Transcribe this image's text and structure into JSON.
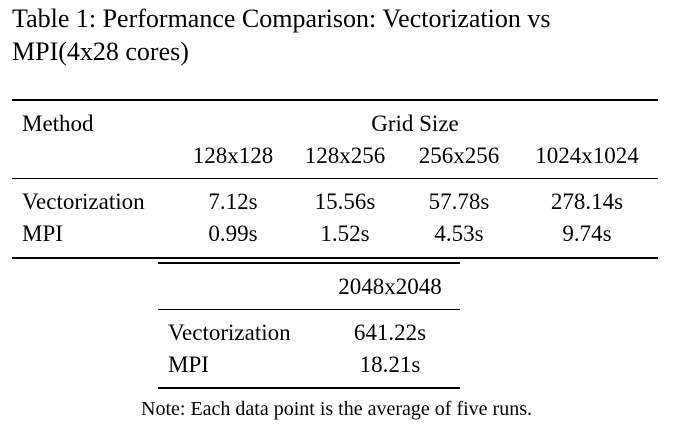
{
  "caption": {
    "line1": "Table 1: Performance Comparison: Vectorization vs",
    "line2": "MPI(4x28 cores)"
  },
  "table1": {
    "method_header": "Method",
    "group_header": "Grid Size",
    "columns": [
      "128x128",
      "128x256",
      "256x256",
      "1024x1024"
    ],
    "rows": [
      {
        "method": "Vectorization",
        "values": [
          "7.12s",
          "15.56s",
          "57.78s",
          "278.14s"
        ]
      },
      {
        "method": "MPI",
        "values": [
          "0.99s",
          "1.52s",
          "4.53s",
          "9.74s"
        ]
      }
    ]
  },
  "table2": {
    "column": "2048x2048",
    "rows": [
      {
        "method": "Vectorization",
        "value": "641.22s"
      },
      {
        "method": "MPI",
        "value": "18.21s"
      }
    ]
  },
  "note": "Note: Each data point is the average of five runs."
}
